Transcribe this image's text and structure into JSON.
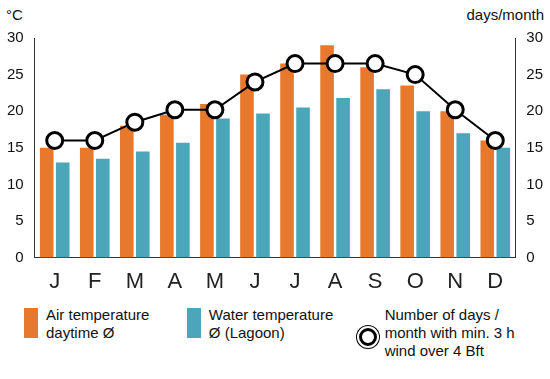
{
  "chart_data": {
    "type": "bar",
    "categories": [
      "J",
      "F",
      "M",
      "A",
      "M",
      "J",
      "J",
      "A",
      "S",
      "O",
      "N",
      "D"
    ],
    "series": [
      {
        "name": "Air temperature daytime Ø",
        "type": "bar",
        "color": "#e8792c",
        "values": [
          15,
          15,
          18,
          19.5,
          21,
          25,
          26.5,
          29,
          26,
          23.5,
          20,
          16
        ]
      },
      {
        "name": "Water temperature Ø (Lagoon)",
        "type": "bar",
        "color": "#4aa6b8",
        "values": [
          13,
          13.5,
          14.5,
          15.7,
          19,
          19.7,
          20.5,
          21.8,
          23,
          20,
          17,
          15
        ]
      },
      {
        "name": "Number of days / month with min. 3 h wind over 4 Bft",
        "type": "line",
        "color": "#000000",
        "marker": "circle",
        "axis": "y2",
        "values": [
          16,
          16,
          18.5,
          20.2,
          20.2,
          24,
          26.5,
          26.5,
          26.5,
          25,
          20.2,
          16
        ]
      }
    ],
    "y_label": "°C",
    "y2_label": "days/month",
    "ylim": [
      0,
      30
    ],
    "yticks": [
      0,
      5,
      10,
      15,
      20,
      25,
      30
    ],
    "y2lim": [
      0,
      30
    ],
    "y2ticks": [
      0,
      5,
      10,
      15,
      20,
      25,
      30
    ],
    "grid": false,
    "legend": "bottom"
  }
}
